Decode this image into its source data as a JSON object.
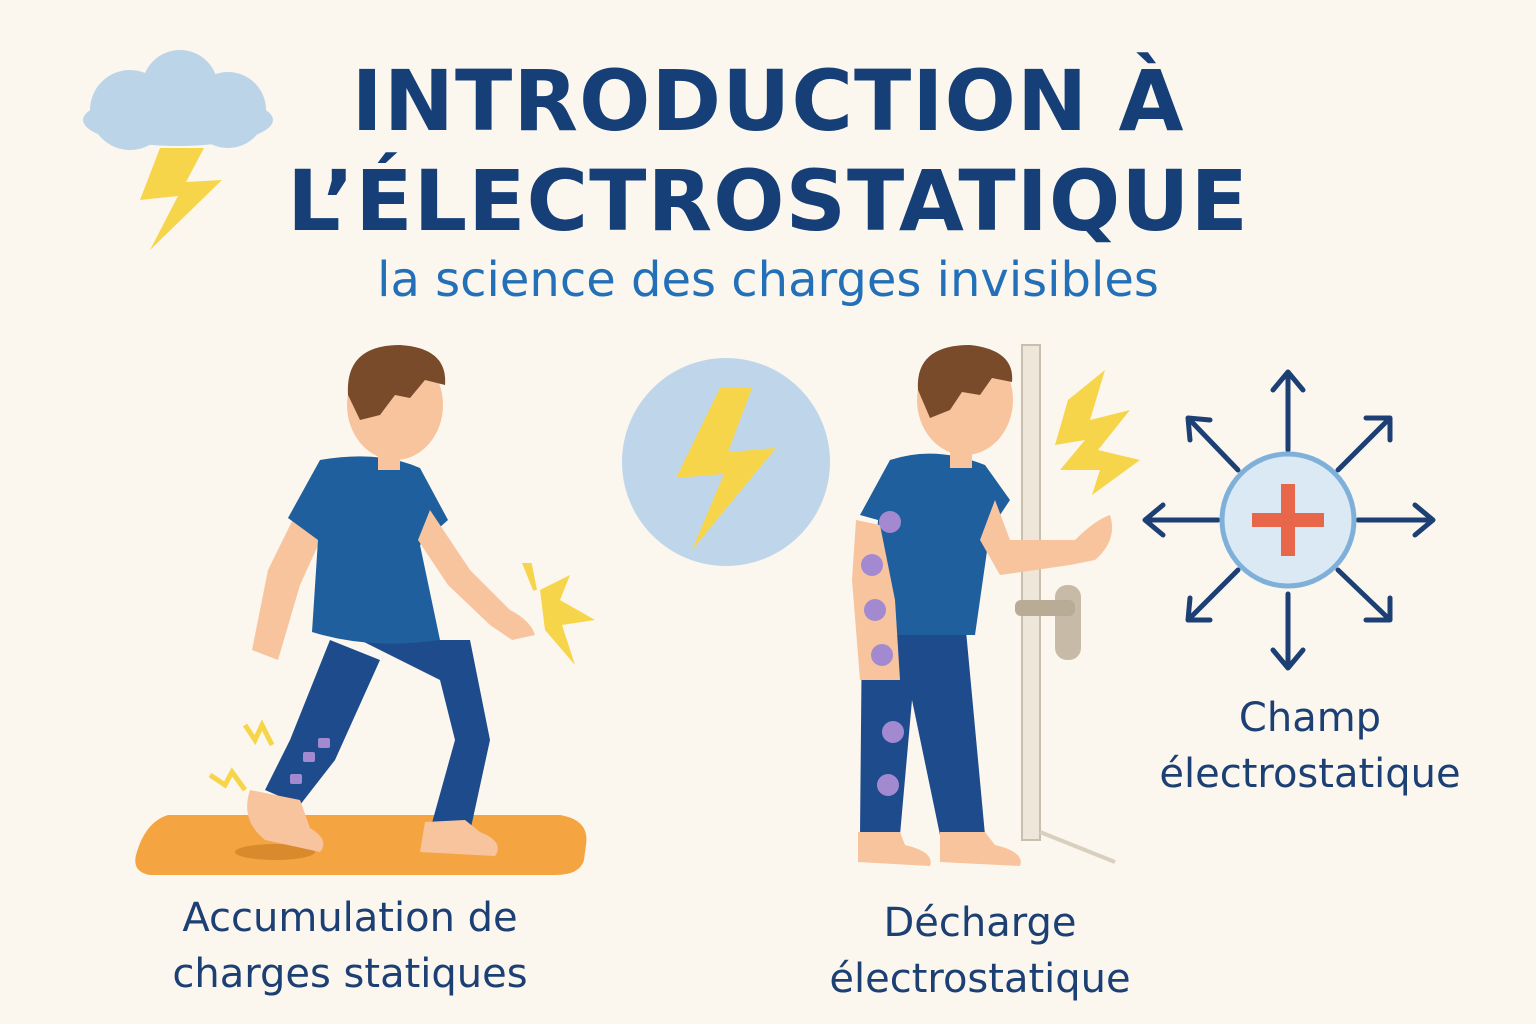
{
  "header": {
    "title_line1": "INTRODUCTION À",
    "title_line2": "L’ÉLECTROSTATIQUE",
    "subtitle": "la science des charges invisibles"
  },
  "panels": {
    "accumulation": {
      "line1": "Accumulation de",
      "line2": "charges statiques"
    },
    "decharge": {
      "line1": "Décharge",
      "line2": "électrostatique"
    },
    "champ": {
      "line1": "Champ",
      "line2": "électrostatique"
    }
  },
  "icons": [
    "storm-cloud-icon",
    "lightning-bolt-icon",
    "positive-charge-icon"
  ],
  "colors": {
    "background": "#fbf7ef",
    "title": "#163f78",
    "subtitle": "#2470b8",
    "shirt": "#1f5f9e",
    "pants": "#1d4b8c",
    "skin": "#f7c49e",
    "hair": "#7a4b2a",
    "mat": "#f4a541",
    "bolt": "#f7d54a",
    "plus": "#e8664a"
  }
}
